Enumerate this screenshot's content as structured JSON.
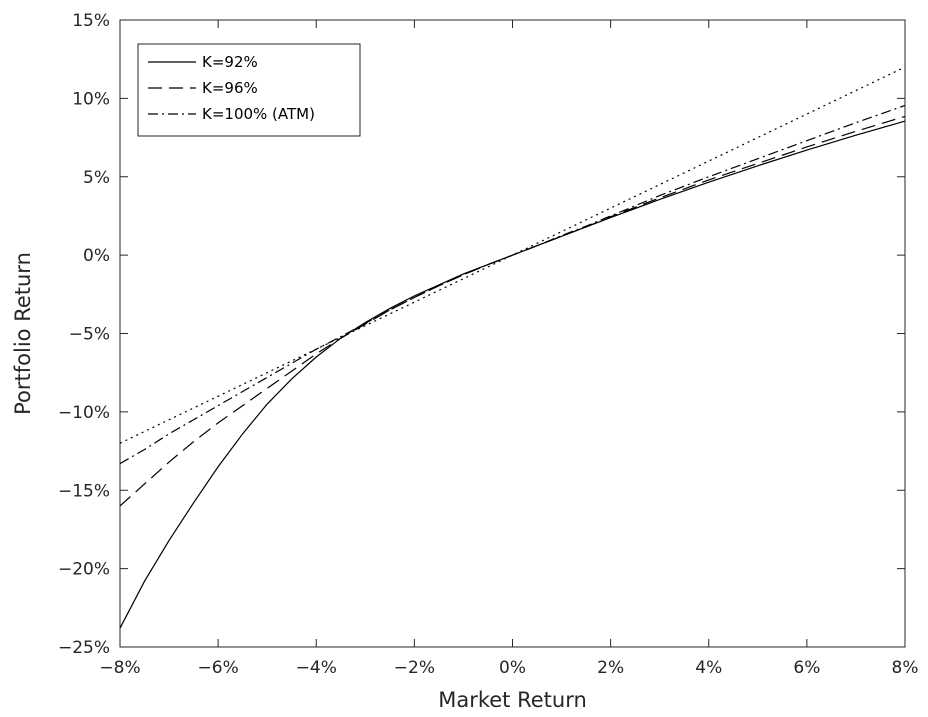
{
  "chart_data": {
    "type": "line",
    "xlabel": "Market Return",
    "ylabel": "Portfolio Return",
    "xlim": [
      -8,
      8
    ],
    "ylim": [
      -25,
      15
    ],
    "x_ticks": [
      {
        "value": -8,
        "label": "−8%"
      },
      {
        "value": -6,
        "label": "−6%"
      },
      {
        "value": -4,
        "label": "−4%"
      },
      {
        "value": -2,
        "label": "−2%"
      },
      {
        "value": 0,
        "label": "0%"
      },
      {
        "value": 2,
        "label": "2%"
      },
      {
        "value": 4,
        "label": "4%"
      },
      {
        "value": 6,
        "label": "6%"
      },
      {
        "value": 8,
        "label": "8%"
      }
    ],
    "y_ticks": [
      {
        "value": -25,
        "label": "−25%"
      },
      {
        "value": -20,
        "label": "−20%"
      },
      {
        "value": -15,
        "label": "−15%"
      },
      {
        "value": -10,
        "label": "−10%"
      },
      {
        "value": -5,
        "label": "−5%"
      },
      {
        "value": 0,
        "label": "0%"
      },
      {
        "value": 5,
        "label": "5%"
      },
      {
        "value": 10,
        "label": "10%"
      },
      {
        "value": 15,
        "label": "15%"
      }
    ],
    "grid": false,
    "legend_position": "top-left",
    "series": [
      {
        "name": "K=92%",
        "style": "solid",
        "color": "#000000",
        "x": [
          -8,
          -7.5,
          -7,
          -6.5,
          -6,
          -5.5,
          -5,
          -4.5,
          -4,
          -3.5,
          -3,
          -2.5,
          -2,
          -1.5,
          -1,
          -0.5,
          0,
          0.5,
          1,
          1.5,
          2,
          3,
          4,
          5,
          6,
          7,
          8
        ],
        "y": [
          -23.8,
          -20.8,
          -18.2,
          -15.8,
          -13.5,
          -11.4,
          -9.5,
          -7.9,
          -6.5,
          -5.3,
          -4.3,
          -3.4,
          -2.6,
          -1.9,
          -1.2,
          -0.6,
          0,
          0.6,
          1.2,
          1.8,
          2.4,
          3.55,
          4.65,
          5.7,
          6.7,
          7.65,
          8.55
        ]
      },
      {
        "name": "K=96%",
        "style": "dashed",
        "color": "#000000",
        "x": [
          -8,
          -7.5,
          -7,
          -6.5,
          -6,
          -5.5,
          -5,
          -4.5,
          -4,
          -3.5,
          -3,
          -2.5,
          -2,
          -1.5,
          -1,
          -0.5,
          0,
          0.5,
          1,
          1.5,
          2,
          3,
          4,
          5,
          6,
          7,
          8
        ],
        "y": [
          -16.0,
          -14.6,
          -13.2,
          -11.9,
          -10.7,
          -9.6,
          -8.5,
          -7.4,
          -6.3,
          -5.3,
          -4.4,
          -3.5,
          -2.7,
          -1.95,
          -1.25,
          -0.6,
          0,
          0.6,
          1.2,
          1.8,
          2.45,
          3.65,
          4.8,
          5.85,
          6.9,
          7.9,
          8.85
        ]
      },
      {
        "name": "K=100% (ATM)",
        "style": "dashdot",
        "color": "#000000",
        "x": [
          -8,
          -7.5,
          -7,
          -6.5,
          -6,
          -5.5,
          -5,
          -4.5,
          -4,
          -3.5,
          -3,
          -2.5,
          -2,
          -1.5,
          -1,
          -0.5,
          0,
          0.5,
          1,
          1.5,
          2,
          3,
          4,
          5,
          6,
          7,
          8
        ],
        "y": [
          -13.3,
          -12.4,
          -11.4,
          -10.5,
          -9.6,
          -8.7,
          -7.8,
          -6.9,
          -6.0,
          -5.2,
          -4.35,
          -3.5,
          -2.7,
          -1.95,
          -1.25,
          -0.6,
          0,
          0.6,
          1.25,
          1.85,
          2.5,
          3.8,
          5.0,
          6.15,
          7.3,
          8.45,
          9.55
        ]
      },
      {
        "style": "dotted",
        "color": "#000000",
        "x": [
          -8,
          8
        ],
        "y": [
          -12.0,
          12.0
        ]
      }
    ]
  }
}
